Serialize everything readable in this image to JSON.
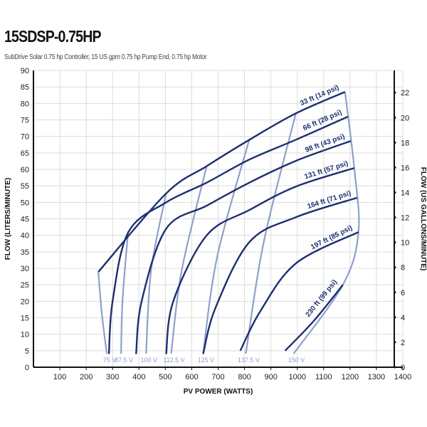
{
  "chart_data": {
    "type": "line",
    "title": "15SDSP-0.75HP",
    "subtitle": "SubDrive Solar 0.75 hp Controller, 15 US gpm 0.75 hp Pump End, 0.75 hp Motor",
    "xlabel": "PV POWER (WATTS)",
    "ylabel": "FLOW (LITERS/MINUTE)",
    "y2label": "FLOW (US GALLONS/MINUTE)",
    "xlim": [
      0,
      1400
    ],
    "ylim": [
      0,
      90
    ],
    "y2lim": [
      0,
      23.8
    ],
    "xticks": [
      100,
      200,
      300,
      400,
      500,
      600,
      700,
      800,
      900,
      1000,
      1100,
      1200,
      1300,
      1400
    ],
    "yticks": [
      0,
      5,
      10,
      15,
      20,
      25,
      30,
      35,
      40,
      45,
      50,
      55,
      60,
      65,
      70,
      75,
      80,
      85,
      90
    ],
    "y2ticks": [
      0,
      2,
      4,
      6,
      8,
      10,
      12,
      14,
      16,
      18,
      20,
      22
    ],
    "grid": true,
    "colors": {
      "head": "#1d2f6f",
      "voltage": "#8fa0cc",
      "grid": "#dcdcdc"
    },
    "head_series": [
      {
        "name": "33 ft (14 psi)",
        "points": [
          [
            246,
            28.9
          ],
          [
            503,
            52.7
          ],
          [
            657,
            61
          ],
          [
            819,
            69
          ],
          [
            995,
            77
          ],
          [
            1181,
            83.5
          ]
        ]
      },
      {
        "name": "66 ft (28 psi)",
        "points": [
          [
            286,
            4
          ],
          [
            300,
            20
          ],
          [
            360,
            41
          ],
          [
            503,
            50
          ],
          [
            657,
            56
          ],
          [
            819,
            63
          ],
          [
            995,
            69
          ],
          [
            1192,
            76
          ]
        ]
      },
      {
        "name": "98 ft (43 psi)",
        "points": [
          [
            389,
            4
          ],
          [
            410,
            20
          ],
          [
            503,
            42
          ],
          [
            657,
            49
          ],
          [
            819,
            56
          ],
          [
            995,
            62.6
          ],
          [
            1203,
            68.6
          ]
        ]
      },
      {
        "name": "131 ft (57 psi)",
        "points": [
          [
            503,
            4
          ],
          [
            530,
            20
          ],
          [
            657,
            40
          ],
          [
            819,
            47.7
          ],
          [
            995,
            54.8
          ],
          [
            1216,
            60.4
          ]
        ]
      },
      {
        "name": "164 ft (71 psi)",
        "points": [
          [
            643,
            4
          ],
          [
            690,
            18
          ],
          [
            819,
            38
          ],
          [
            995,
            45.5
          ],
          [
            1227,
            51.4
          ]
        ]
      },
      {
        "name": "197 ft (85 psi)",
        "points": [
          [
            784,
            5
          ],
          [
            860,
            17
          ],
          [
            995,
            31.5
          ],
          [
            1232,
            41
          ]
        ]
      },
      {
        "name": "230 ft (99 psi)",
        "points": [
          [
            954,
            5
          ],
          [
            1062,
            14
          ],
          [
            1173,
            25
          ]
        ]
      }
    ],
    "voltage_series": [
      {
        "name": "75 V",
        "points": [
          [
            246,
            28.9
          ],
          [
            259,
            16.4
          ],
          [
            278,
            4.1
          ]
        ]
      },
      {
        "name": "87.5 V",
        "points": [
          [
            359,
            41.2
          ],
          [
            338,
            20.7
          ],
          [
            332,
            4.1
          ]
        ]
      },
      {
        "name": "100 V",
        "points": [
          [
            503,
            52.7
          ],
          [
            446,
            29.4
          ],
          [
            427,
            4.1
          ]
        ]
      },
      {
        "name": "112.5 V",
        "points": [
          [
            657,
            61.1
          ],
          [
            562,
            29.4
          ],
          [
            522,
            4.1
          ]
        ]
      },
      {
        "name": "125 V",
        "points": [
          [
            819,
            69.3
          ],
          [
            697,
            33.7
          ],
          [
            643,
            4.1
          ]
        ]
      },
      {
        "name": "137.5 V",
        "points": [
          [
            995,
            77.1
          ],
          [
            873,
            38
          ],
          [
            805,
            4.1
          ]
        ]
      },
      {
        "name": "150 V",
        "points": [
          [
            1181,
            83.5
          ],
          [
            1216,
            60.4
          ],
          [
            1232,
            41
          ],
          [
            1173,
            25
          ],
          [
            986,
            4.1
          ]
        ]
      }
    ]
  }
}
